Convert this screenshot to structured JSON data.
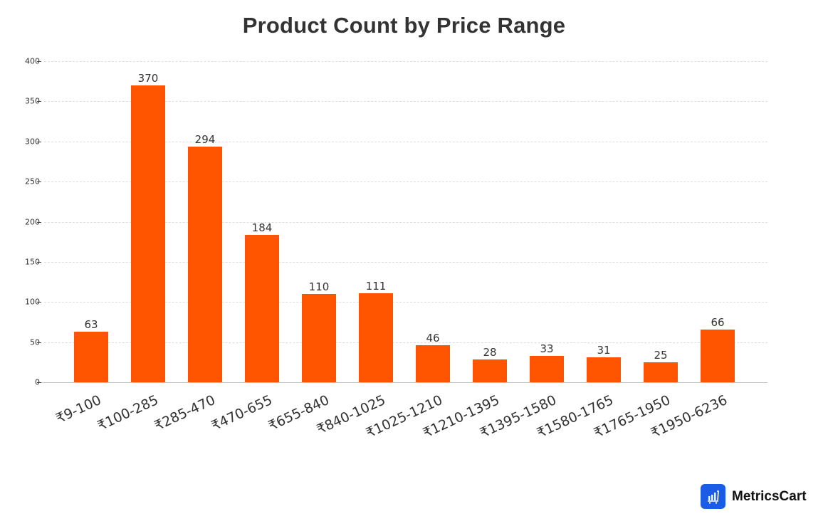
{
  "chart": {
    "title": "Product Count by Price Range",
    "bar_color": "#ff5500",
    "y_ticks": [
      "0",
      "50",
      "100",
      "150",
      "200",
      "250",
      "300",
      "350",
      "400"
    ]
  },
  "chart_data": {
    "type": "bar",
    "title": "Product Count by Price Range",
    "xlabel": "",
    "ylabel": "",
    "categories": [
      "₹9-100",
      "₹100-285",
      "₹285-470",
      "₹470-655",
      "₹655-840",
      "₹840-1025",
      "₹1025-1210",
      "₹1210-1395",
      "₹1395-1580",
      "₹1580-1765",
      "₹1765-1950",
      "₹1950-6236"
    ],
    "values": [
      63,
      370,
      294,
      184,
      110,
      111,
      46,
      28,
      33,
      31,
      25,
      66
    ],
    "ylim": [
      0,
      400
    ],
    "yticks": [
      0,
      50,
      100,
      150,
      200,
      250,
      300,
      350,
      400
    ],
    "grid": "horizontal dashed",
    "legend": "none",
    "data_labels": true
  },
  "brand": {
    "name": "MetricsCart",
    "icon": "chart-cart-icon",
    "color": "#1a5ce6"
  }
}
